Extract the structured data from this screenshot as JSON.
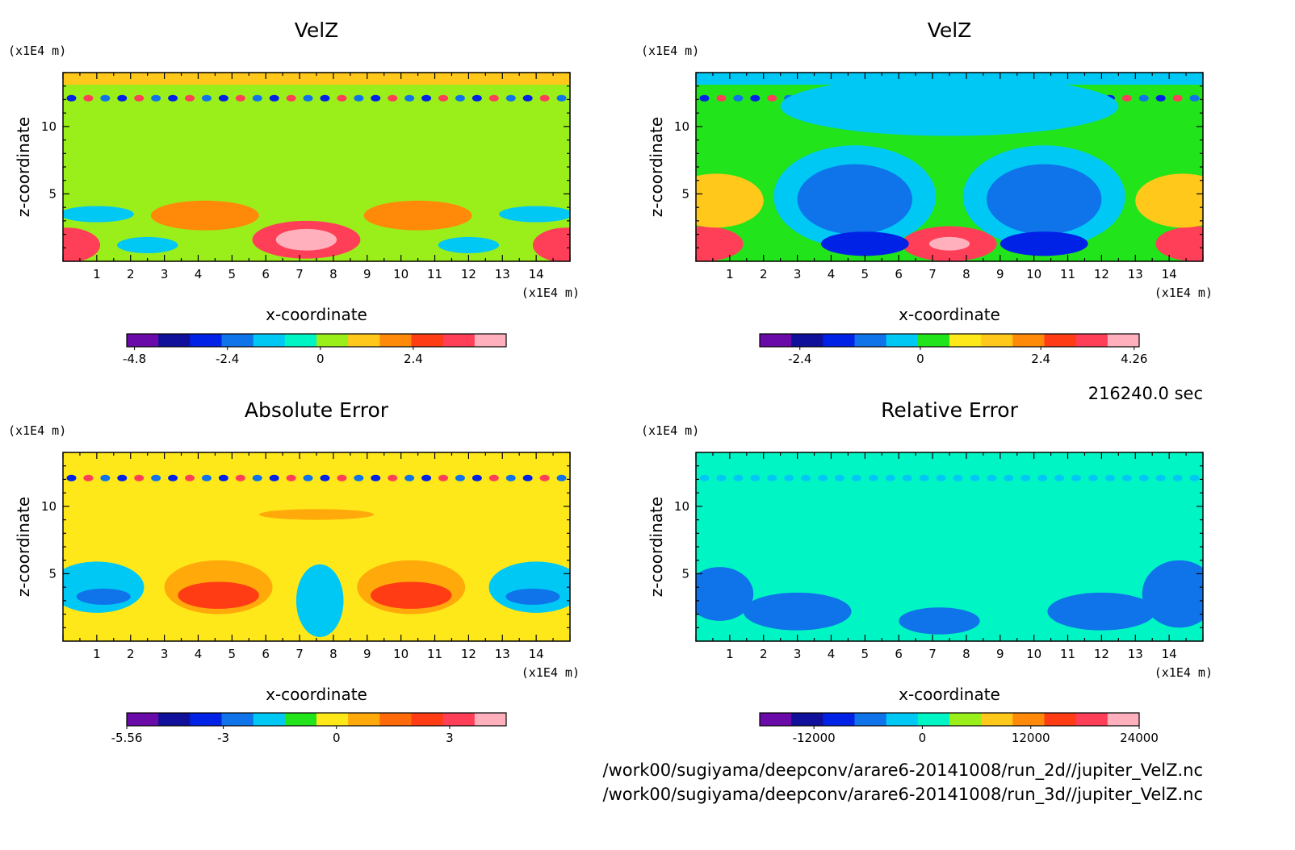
{
  "time_label": "216240.0 sec",
  "files": [
    "/work00/sugiyama/deepconv/arare6-20141008/run_2d//jupiter_VelZ.nc",
    "/work00/sugiyama/deepconv/arare6-20141008/run_3d//jupiter_VelZ.nc"
  ],
  "chart_data": [
    {
      "type": "heatmap",
      "title": "VelZ",
      "xlabel": "x-coordinate",
      "ylabel": "z-coordinate",
      "x_unit": "(x1E4 m)",
      "y_unit": "(x1E4 m)",
      "xlim": [
        0,
        15
      ],
      "ylim": [
        0,
        14
      ],
      "x_ticks": [
        1,
        2,
        3,
        4,
        5,
        6,
        7,
        8,
        9,
        10,
        11,
        12,
        13,
        14
      ],
      "y_ticks": [
        5,
        10
      ],
      "colorbar": {
        "range": [
          -5,
          4.8
        ],
        "labels": [
          "-4.8",
          "-2.4",
          "0",
          "2.4"
        ],
        "label_values": [
          -4.8,
          -2.4,
          0,
          2.4
        ],
        "colors": [
          "#6a0aa8",
          "#10109a",
          "#0022e6",
          "#0f73ea",
          "#00c8f5",
          "#00f5c5",
          "#9aef1a",
          "#ffc81a",
          "#ff8a0a",
          "#ff3c14",
          "#ff3f58",
          "#ffb0bc"
        ]
      }
    },
    {
      "type": "heatmap",
      "title": "VelZ",
      "xlabel": "x-coordinate",
      "ylabel": "z-coordinate",
      "x_unit": "(x1E4 m)",
      "y_unit": "(x1E4 m)",
      "xlim": [
        0,
        15
      ],
      "ylim": [
        0,
        14
      ],
      "x_ticks": [
        1,
        2,
        3,
        4,
        5,
        6,
        7,
        8,
        9,
        10,
        11,
        12,
        13,
        14
      ],
      "y_ticks": [
        5,
        10
      ],
      "colorbar": {
        "range": [
          -3.2,
          4.36
        ],
        "labels": [
          "-2.4",
          "0",
          "2.4",
          "4.26"
        ],
        "label_values": [
          -2.4,
          0,
          2.4,
          4.26
        ],
        "colors": [
          "#6a0aa8",
          "#10109a",
          "#0022e6",
          "#0f73ea",
          "#00c8f5",
          "#22e41a",
          "#ffe81a",
          "#ffc81a",
          "#ff8a0a",
          "#ff3c14",
          "#ff3f58",
          "#ffb0bc"
        ]
      }
    },
    {
      "type": "heatmap",
      "title": "Absolute Error",
      "xlabel": "x-coordinate",
      "ylabel": "z-coordinate",
      "x_unit": "(x1E4 m)",
      "y_unit": "(x1E4 m)",
      "xlim": [
        0,
        15
      ],
      "ylim": [
        0,
        14
      ],
      "x_ticks": [
        1,
        2,
        3,
        4,
        5,
        6,
        7,
        8,
        9,
        10,
        11,
        12,
        13,
        14
      ],
      "y_ticks": [
        5,
        10
      ],
      "colorbar": {
        "range": [
          -5.56,
          4.5
        ],
        "labels": [
          "-5.56",
          "-3",
          "0",
          "3"
        ],
        "label_values": [
          -5.56,
          -3,
          0,
          3
        ],
        "colors": [
          "#6a0aa8",
          "#10109a",
          "#0022e6",
          "#0f73ea",
          "#00c8f5",
          "#22e41a",
          "#ffe81a",
          "#ffaa0a",
          "#ff6a0a",
          "#ff3c14",
          "#ff3f58",
          "#ffb0bc"
        ]
      }
    },
    {
      "type": "heatmap",
      "title": "Relative Error",
      "xlabel": "x-coordinate",
      "ylabel": "z-coordinate",
      "x_unit": "(x1E4 m)",
      "y_unit": "(x1E4 m)",
      "xlim": [
        0,
        15
      ],
      "ylim": [
        0,
        14
      ],
      "x_ticks": [
        1,
        2,
        3,
        4,
        5,
        6,
        7,
        8,
        9,
        10,
        11,
        12,
        13,
        14
      ],
      "y_ticks": [
        5,
        10
      ],
      "colorbar": {
        "range": [
          -18000,
          24000
        ],
        "labels": [
          "-12000",
          "0",
          "12000",
          "24000"
        ],
        "label_values": [
          -12000,
          0,
          12000,
          24000
        ],
        "colors": [
          "#6a0aa8",
          "#10109a",
          "#0022e6",
          "#0f73ea",
          "#00c8f5",
          "#00f5c5",
          "#9aef1a",
          "#ffc81a",
          "#ff8a0a",
          "#ff3c14",
          "#ff3f58",
          "#ffb0bc"
        ]
      }
    }
  ]
}
